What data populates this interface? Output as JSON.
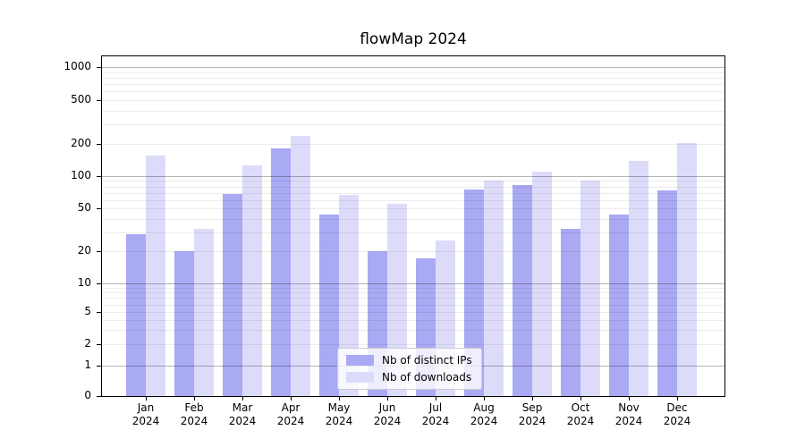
{
  "chart": {
    "title": "flowMap 2024"
  },
  "chart_data": {
    "type": "bar",
    "title": "flowMap 2024",
    "x_year": "2024",
    "categories": [
      "Jan",
      "Feb",
      "Mar",
      "Apr",
      "May",
      "Jun",
      "Jul",
      "Aug",
      "Sep",
      "Oct",
      "Nov",
      "Dec"
    ],
    "series": [
      {
        "name": "Nb of distinct IPs",
        "color": "#a9a9f4",
        "values": [
          29,
          20,
          68,
          180,
          44,
          20,
          17,
          75,
          82,
          32,
          44,
          73
        ]
      },
      {
        "name": "Nb of downloads",
        "color": "#dcdcfa",
        "values": [
          155,
          32,
          126,
          235,
          67,
          55,
          25,
          91,
          110,
          91,
          140,
          205
        ]
      }
    ],
    "y_ticks": [
      0,
      1,
      2,
      5,
      10,
      20,
      50,
      100,
      200,
      500,
      1000
    ],
    "y_major_gridlines": [
      1,
      10,
      100,
      1000
    ],
    "y_minor_gridlines": [
      2,
      3,
      4,
      5,
      6,
      7,
      8,
      9,
      20,
      30,
      40,
      50,
      60,
      70,
      80,
      90,
      200,
      300,
      400,
      500,
      600,
      700,
      800,
      900
    ],
    "scale": "symlog",
    "ylim": [
      0,
      1000
    ],
    "grid": true,
    "legend_position": "lower-center",
    "colors": {
      "major_gridline": "#b5b5b5",
      "minor_gridline": "#ededed",
      "axis": "#000000",
      "background": "#ffffff"
    }
  }
}
